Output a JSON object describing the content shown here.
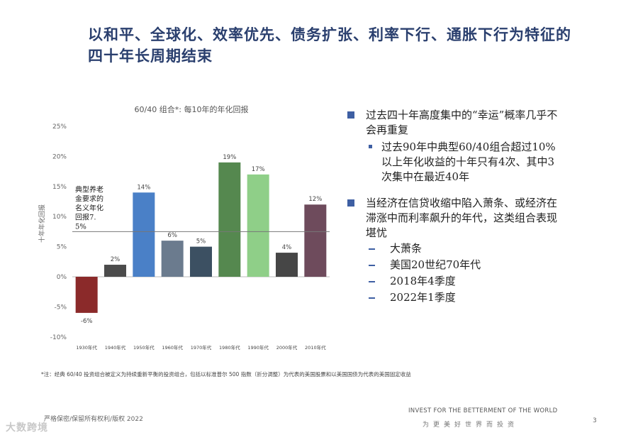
{
  "slide_title": "以和平、全球化、效率优先、债务扩张、利率下行、通胀下行为特征的四十年长周期结束",
  "bullets": {
    "b1": "过去四十年高度集中的“幸运”概率几乎不会再重复",
    "b1_sub": "过去90年中典型60/40组合超过10%以上年化收益的十年只有4次、其中3次集中在最近40年",
    "b2": "当经济在信贷收缩中陷入萧条、或经济在滞涨中而利率飙升的年代，这类组合表现堪忧",
    "b2_items": [
      "大萧条",
      "美国20世纪70年代",
      "2018年4季度",
      "2022年1季度"
    ]
  },
  "footnote": "*注：经典 60/40 投资组合被定义为持续重新平衡的投资组合，包括以标准普尔 500 指数（折分调整）为代表的美国股票和以美国国债为代表的美国固定收益",
  "copyright": "严格保密/保留所有权利/版权 2022",
  "tagline_en": "INVEST FOR THE BETTERMENT OF THE WORLD",
  "tagline_cn": "为更美好世界而投资",
  "page_number": "3",
  "watermark": "大数跨境",
  "chart_data": {
    "type": "bar",
    "title": "60/40 组合*: 每10年的年化回报",
    "ylabel": "十年年化回报",
    "xlabel": "",
    "categories": [
      "1930年代",
      "1940年代",
      "1950年代",
      "1960年代",
      "1970年代",
      "1980年代",
      "1990年代",
      "2000年代",
      "2010年代"
    ],
    "values": [
      -6,
      2,
      14,
      6,
      5,
      19,
      17,
      4,
      12
    ],
    "value_labels": [
      "-6%",
      "2%",
      "14%",
      "6%",
      "5%",
      "19%",
      "17%",
      "4%",
      "12%"
    ],
    "colors": [
      "#8b2a2a",
      "#4b4b4b",
      "#4a80c7",
      "#6b7b8e",
      "#3c5062",
      "#55884f",
      "#8fcf88",
      "#464646",
      "#6e4b5c"
    ],
    "ylim": [
      -10,
      25
    ],
    "yticks": [
      -10,
      -5,
      0,
      5,
      10,
      15,
      20,
      25
    ],
    "ytick_labels": [
      "-10%",
      "-5%",
      "0%",
      "5%",
      "10%",
      "15%",
      "20%",
      "25%"
    ],
    "reference_line": {
      "value": 7.5,
      "label": "典型养老金要求的名义年化回报7.5%"
    },
    "grid": false,
    "legend": "none"
  }
}
